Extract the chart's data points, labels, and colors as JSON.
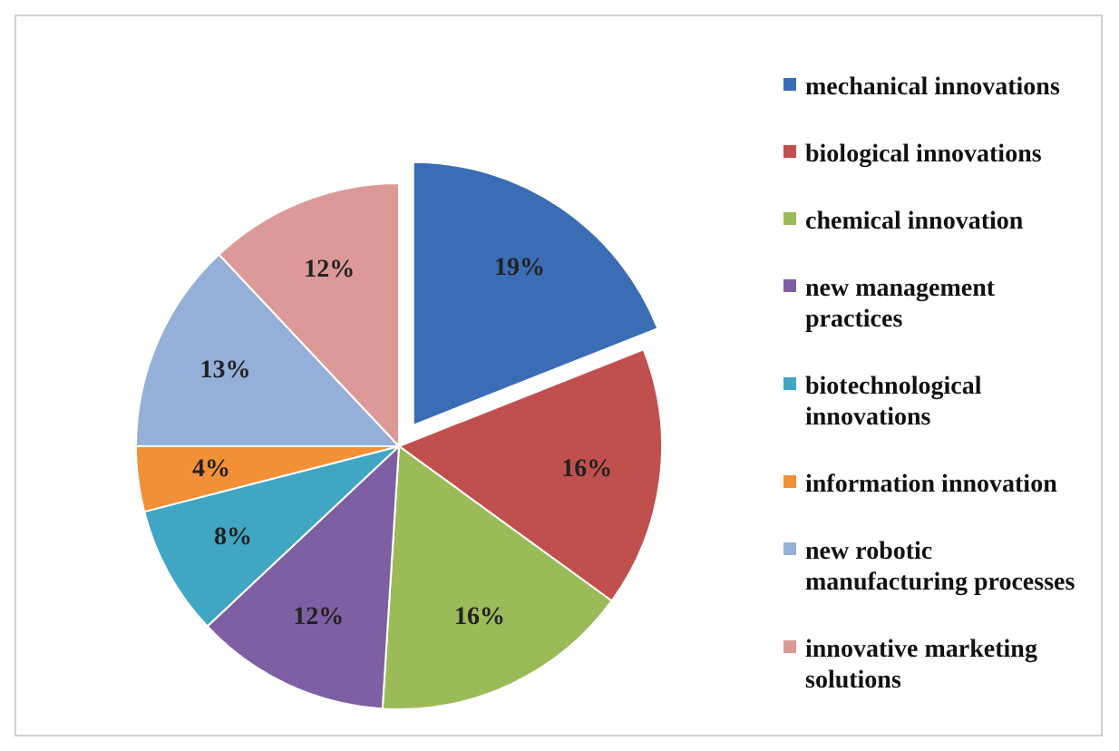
{
  "chart_data": {
    "type": "pie",
    "categories": [
      "mechanical innovations",
      "biological innovations",
      "chemical innovation",
      "new management practices",
      "biotechnological innovations",
      "information innovation",
      "new robotic manufacturing processes",
      "innovative marketing solutions"
    ],
    "values": [
      19,
      16,
      16,
      12,
      8,
      4,
      13,
      12
    ],
    "value_labels": [
      "19%",
      "16%",
      "16%",
      "12%",
      "8%",
      "4%",
      "13%",
      "12%"
    ],
    "colors": [
      "#3b6db5",
      "#c0504d",
      "#9bbb59",
      "#7f5fa3",
      "#41a6c4",
      "#f29037",
      "#94b0d8",
      "#db9a98"
    ],
    "legend": "right"
  }
}
